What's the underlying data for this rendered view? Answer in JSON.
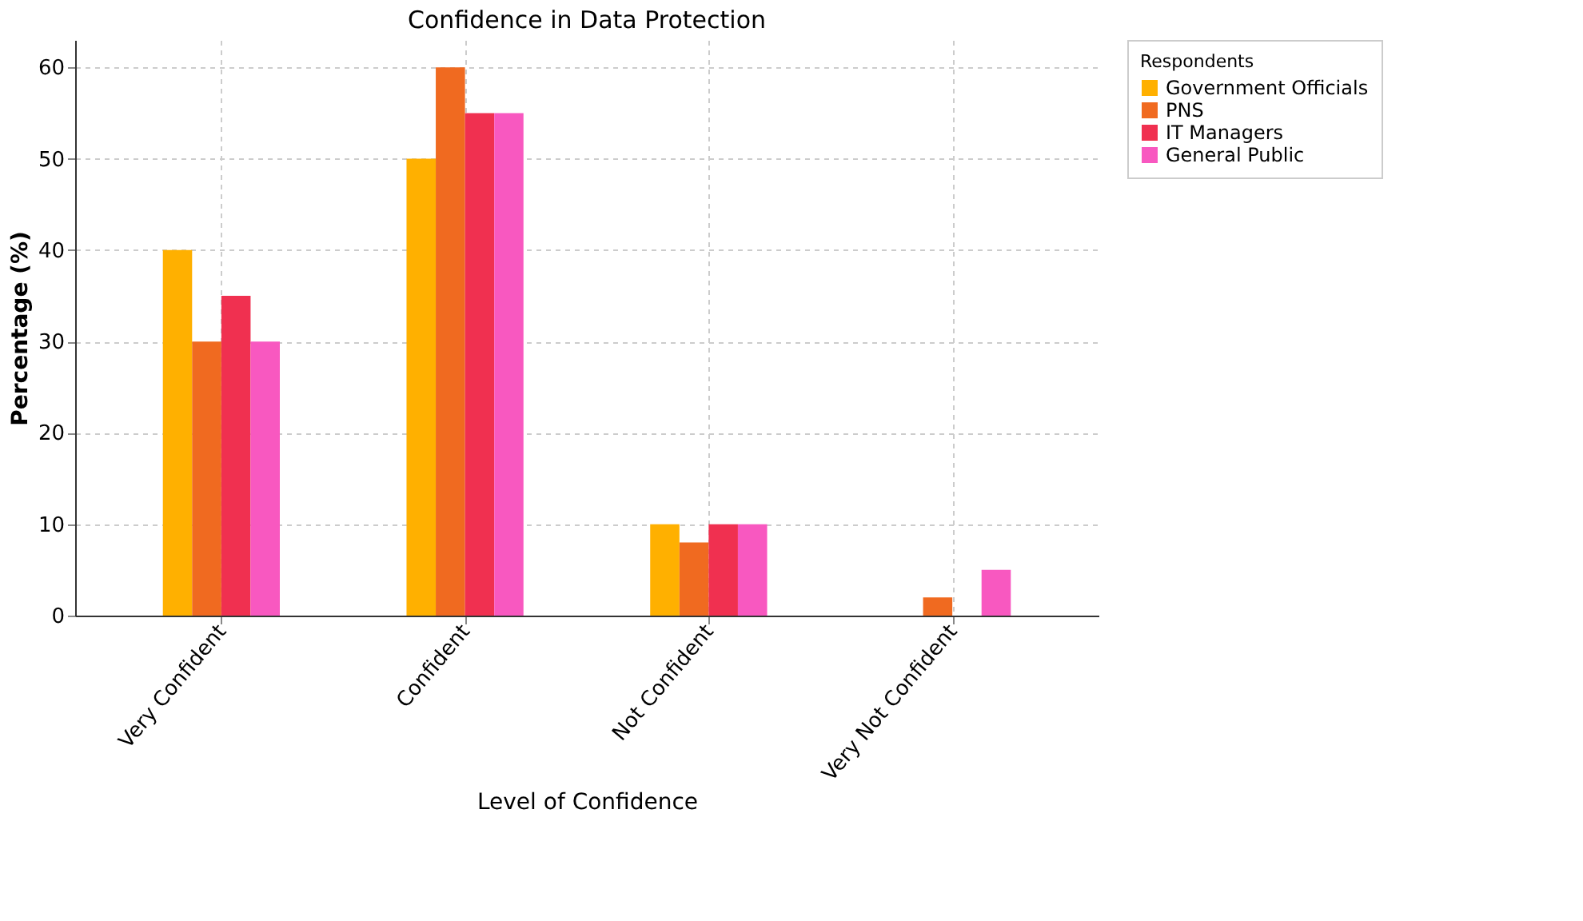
{
  "chart_data": {
    "type": "bar",
    "title": "Confidence in Data Protection",
    "xlabel": "Level of Confidence",
    "ylabel": "Percentage (%)",
    "legend_title": "Respondents",
    "categories": [
      "Very Confident",
      "Confident",
      "Not Confident",
      "Very Not Confident"
    ],
    "series": [
      {
        "name": "Government Officials",
        "color": "#ffb000",
        "values": [
          40,
          50,
          10,
          null
        ]
      },
      {
        "name": "PNS",
        "color": "#f06a20",
        "values": [
          30,
          60,
          8,
          2
        ]
      },
      {
        "name": "IT Managers",
        "color": "#f03050",
        "values": [
          35,
          55,
          10,
          null
        ]
      },
      {
        "name": "General Public",
        "color": "#f858c0",
        "values": [
          30,
          55,
          10,
          5
        ]
      }
    ],
    "ylim": [
      0,
      63
    ],
    "yticks": [
      0,
      10,
      20,
      30,
      40,
      50,
      60
    ],
    "grid": true,
    "legend": "top right"
  }
}
